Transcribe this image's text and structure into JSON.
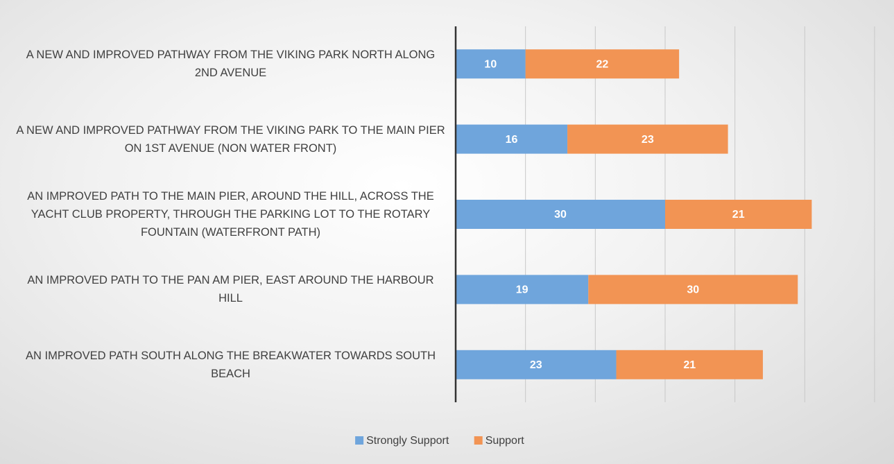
{
  "chart_data": {
    "type": "stacked_barh",
    "categories": [
      "A NEW AND IMPROVED PATHWAY FROM THE VIKING PARK NORTH ALONG 2ND AVENUE",
      "A NEW AND IMPROVED PATHWAY FROM THE VIKING PARK TO THE MAIN PIER ON 1ST AVENUE (NON WATER FRONT)",
      "AN IMPROVED PATH TO THE MAIN PIER, AROUND THE HILL, ACROSS THE YACHT CLUB PROPERTY, THROUGH THE PARKING LOT TO THE ROTARY FOUNTAIN (WATERFRONT PATH)",
      "AN IMPROVED PATH TO THE PAN AM PIER, EAST AROUND THE HARBOUR HILL",
      "AN IMPROVED PATH SOUTH ALONG THE BREAKWATER TOWARDS SOUTH BEACH"
    ],
    "series": [
      {
        "name": "Strongly Support",
        "color": "#6fa5dc",
        "values": [
          10,
          16,
          30,
          19,
          23
        ]
      },
      {
        "name": "Support",
        "color": "#f29454",
        "values": [
          22,
          23,
          21,
          30,
          21
        ]
      }
    ],
    "xlim": [
      0,
      60
    ],
    "xticks": [
      0,
      10,
      20,
      30,
      40,
      50,
      60
    ],
    "grid": true,
    "legend": "bottom"
  }
}
